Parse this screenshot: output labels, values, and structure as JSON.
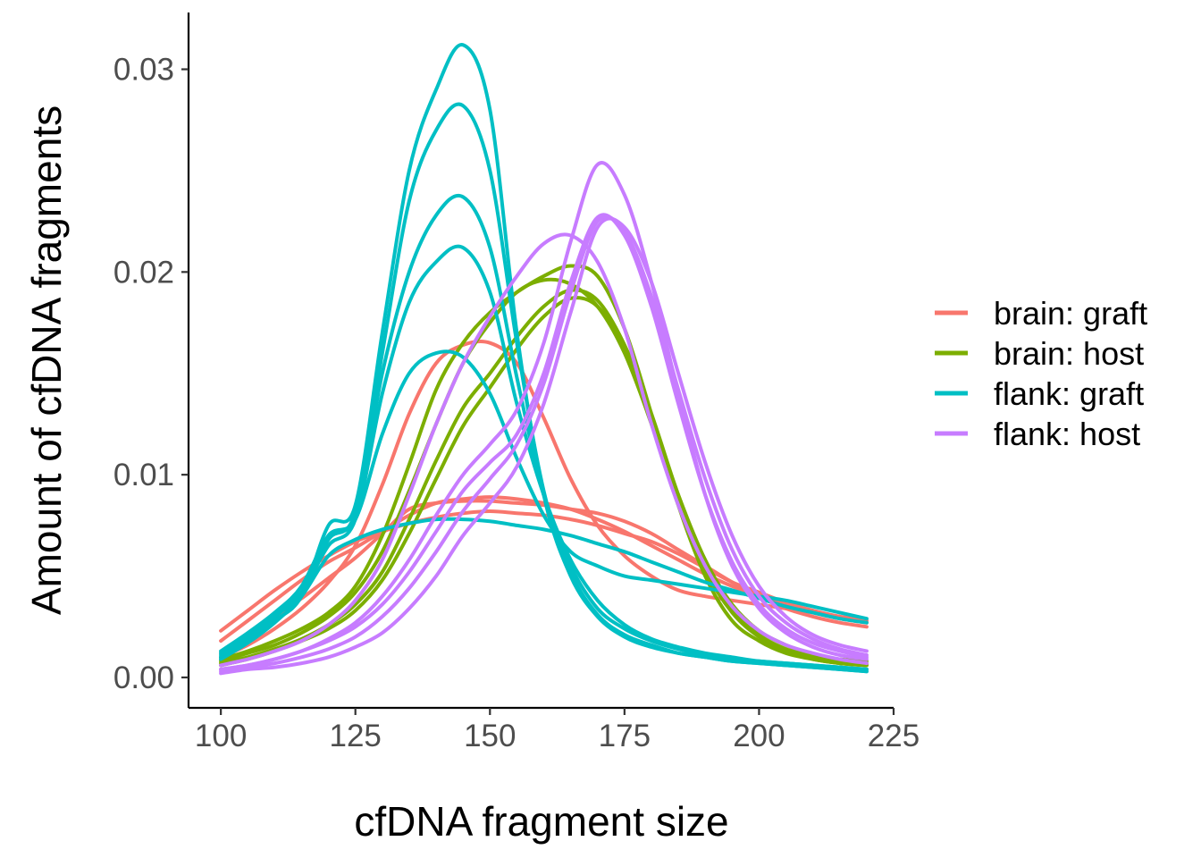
{
  "chart_data": {
    "type": "line",
    "title": "",
    "xlabel": "cfDNA fragment size",
    "ylabel": "Amount of cfDNA fragments",
    "xlim": [
      94,
      225
    ],
    "ylim": [
      -0.0015,
      0.0328
    ],
    "xticks": [
      100,
      125,
      150,
      175,
      200,
      225
    ],
    "yticks": [
      0.0,
      0.01,
      0.02,
      0.03
    ],
    "ytick_labels": [
      "0.00",
      "0.01",
      "0.02",
      "0.03"
    ],
    "grid": false,
    "legend_position": "right",
    "legend": [
      {
        "label": "brain: graft",
        "color": "#F8766D"
      },
      {
        "label": "brain: host",
        "color": "#7CAE00"
      },
      {
        "label": "flank: graft",
        "color": "#00BFC4"
      },
      {
        "label": "flank: host",
        "color": "#C77CFF"
      }
    ],
    "series": [
      {
        "group": "brain: graft",
        "color": "#F8766D",
        "x": [
          100,
          105,
          110,
          115,
          120,
          125,
          130,
          135,
          140,
          145,
          150,
          155,
          160,
          165,
          170,
          175,
          180,
          185,
          190,
          195,
          200,
          205,
          210,
          215,
          220
        ],
        "y": [
          0.0023,
          0.0033,
          0.0043,
          0.0052,
          0.006,
          0.0067,
          0.0072,
          0.0076,
          0.0079,
          0.0081,
          0.0082,
          0.0081,
          0.008,
          0.0078,
          0.0075,
          0.0071,
          0.0067,
          0.0061,
          0.0054,
          0.0047,
          0.0042,
          0.0037,
          0.0033,
          0.003,
          0.0028
        ]
      },
      {
        "group": "brain: graft",
        "color": "#F8766D",
        "x": [
          100,
          105,
          110,
          115,
          120,
          125,
          130,
          135,
          140,
          145,
          150,
          155,
          160,
          165,
          170,
          175,
          180,
          185,
          190,
          195,
          200,
          205,
          210,
          215,
          220
        ],
        "y": [
          0.0018,
          0.0028,
          0.0038,
          0.0048,
          0.0057,
          0.0064,
          0.0072,
          0.008,
          0.0086,
          0.0088,
          0.0089,
          0.0088,
          0.0086,
          0.0083,
          0.0078,
          0.0072,
          0.0065,
          0.0058,
          0.0051,
          0.0045,
          0.004,
          0.0036,
          0.0032,
          0.0029,
          0.0027
        ]
      },
      {
        "group": "brain: graft",
        "color": "#F8766D",
        "x": [
          100,
          105,
          110,
          115,
          120,
          125,
          130,
          135,
          140,
          145,
          150,
          155,
          160,
          165,
          170,
          175,
          180,
          185,
          190,
          195,
          200,
          205,
          210,
          215,
          220
        ],
        "y": [
          0.0012,
          0.0021,
          0.003,
          0.0039,
          0.0049,
          0.0059,
          0.0071,
          0.0083,
          0.0086,
          0.0087,
          0.0087,
          0.0086,
          0.0085,
          0.0083,
          0.0081,
          0.0077,
          0.0071,
          0.0063,
          0.0055,
          0.0047,
          0.004,
          0.0034,
          0.003,
          0.0027,
          0.0025
        ]
      },
      {
        "group": "brain: graft",
        "color": "#F8766D",
        "x": [
          100,
          105,
          110,
          115,
          120,
          125,
          130,
          135,
          140,
          145,
          150,
          155,
          160,
          165,
          170,
          175,
          180,
          185,
          190,
          195,
          200,
          205,
          210,
          215,
          220
        ],
        "y": [
          0.001,
          0.0016,
          0.0024,
          0.0034,
          0.0047,
          0.0065,
          0.0095,
          0.013,
          0.0155,
          0.0164,
          0.0165,
          0.0155,
          0.0128,
          0.0098,
          0.0075,
          0.006,
          0.005,
          0.0043,
          0.004,
          0.0038,
          0.0036,
          0.0034,
          0.0032,
          0.003,
          0.0028
        ]
      },
      {
        "group": "brain: host",
        "color": "#7CAE00",
        "x": [
          100,
          105,
          110,
          115,
          120,
          125,
          130,
          135,
          140,
          145,
          150,
          155,
          160,
          165,
          170,
          175,
          180,
          185,
          190,
          195,
          200,
          205,
          210,
          215,
          220
        ],
        "y": [
          0.0009,
          0.0013,
          0.0018,
          0.0024,
          0.0032,
          0.0045,
          0.007,
          0.0105,
          0.0142,
          0.0165,
          0.018,
          0.019,
          0.0198,
          0.0203,
          0.0198,
          0.0172,
          0.013,
          0.0085,
          0.005,
          0.0028,
          0.0018,
          0.0012,
          0.0009,
          0.0007,
          0.0006
        ]
      },
      {
        "group": "brain: host",
        "color": "#7CAE00",
        "x": [
          100,
          105,
          110,
          115,
          120,
          125,
          130,
          135,
          140,
          145,
          150,
          155,
          160,
          165,
          170,
          175,
          180,
          185,
          190,
          195,
          200,
          205,
          210,
          215,
          220
        ],
        "y": [
          0.0008,
          0.0012,
          0.0016,
          0.0022,
          0.003,
          0.0042,
          0.0062,
          0.0092,
          0.0125,
          0.0155,
          0.0175,
          0.019,
          0.0196,
          0.0194,
          0.0183,
          0.016,
          0.0125,
          0.0085,
          0.0053,
          0.0032,
          0.002,
          0.0013,
          0.0009,
          0.0007,
          0.0006
        ]
      },
      {
        "group": "brain: host",
        "color": "#7CAE00",
        "x": [
          100,
          105,
          110,
          115,
          120,
          125,
          130,
          135,
          140,
          145,
          150,
          155,
          160,
          165,
          170,
          175,
          180,
          185,
          190,
          195,
          200,
          205,
          210,
          215,
          220
        ],
        "y": [
          0.0007,
          0.001,
          0.0014,
          0.0019,
          0.0026,
          0.0036,
          0.0052,
          0.0078,
          0.0107,
          0.0133,
          0.015,
          0.0168,
          0.0183,
          0.0191,
          0.0186,
          0.0164,
          0.013,
          0.009,
          0.0057,
          0.0034,
          0.0021,
          0.0014,
          0.001,
          0.0008,
          0.0007
        ]
      },
      {
        "group": "brain: host",
        "color": "#7CAE00",
        "x": [
          100,
          105,
          110,
          115,
          120,
          125,
          130,
          135,
          140,
          145,
          150,
          155,
          160,
          165,
          170,
          175,
          180,
          185,
          190,
          195,
          200,
          205,
          210,
          215,
          220
        ],
        "y": [
          0.0006,
          0.0009,
          0.0013,
          0.0018,
          0.0024,
          0.0033,
          0.0048,
          0.0071,
          0.0098,
          0.0124,
          0.0143,
          0.0162,
          0.0178,
          0.0187,
          0.0183,
          0.0162,
          0.0128,
          0.009,
          0.0058,
          0.0036,
          0.0023,
          0.0016,
          0.0011,
          0.0009,
          0.0008
        ]
      },
      {
        "group": "flank: graft",
        "color": "#00BFC4",
        "x": [
          100,
          105,
          110,
          115,
          120,
          125,
          130,
          135,
          140,
          145,
          150,
          155,
          160,
          165,
          170,
          175,
          180,
          185,
          190,
          195,
          200,
          205,
          210,
          215,
          220
        ],
        "y": [
          0.001,
          0.0018,
          0.0028,
          0.004,
          0.0075,
          0.0085,
          0.017,
          0.025,
          0.029,
          0.0312,
          0.028,
          0.017,
          0.009,
          0.005,
          0.003,
          0.002,
          0.0015,
          0.0012,
          0.001,
          0.0008,
          0.0007,
          0.0006,
          0.0005,
          0.0004,
          0.0003
        ]
      },
      {
        "group": "flank: graft",
        "color": "#00BFC4",
        "x": [
          100,
          105,
          110,
          115,
          120,
          125,
          130,
          135,
          140,
          145,
          150,
          155,
          160,
          165,
          170,
          175,
          180,
          185,
          190,
          195,
          200,
          205,
          210,
          215,
          220
        ],
        "y": [
          0.0012,
          0.002,
          0.003,
          0.0042,
          0.0068,
          0.0082,
          0.016,
          0.0235,
          0.027,
          0.0282,
          0.025,
          0.0165,
          0.0092,
          0.0052,
          0.0031,
          0.0021,
          0.0016,
          0.0012,
          0.001,
          0.0008,
          0.0007,
          0.0006,
          0.0005,
          0.0004,
          0.0003
        ]
      },
      {
        "group": "flank: graft",
        "color": "#00BFC4",
        "x": [
          100,
          105,
          110,
          115,
          120,
          125,
          130,
          135,
          140,
          145,
          150,
          155,
          160,
          165,
          170,
          175,
          180,
          185,
          190,
          195,
          200,
          205,
          210,
          215,
          220
        ],
        "y": [
          0.0013,
          0.0022,
          0.0032,
          0.0045,
          0.007,
          0.008,
          0.015,
          0.02,
          0.0228,
          0.0237,
          0.0212,
          0.0148,
          0.009,
          0.0055,
          0.0034,
          0.0024,
          0.0018,
          0.0014,
          0.0011,
          0.0009,
          0.0008,
          0.0007,
          0.0006,
          0.0005,
          0.0004
        ]
      },
      {
        "group": "flank: graft",
        "color": "#00BFC4",
        "x": [
          100,
          105,
          110,
          115,
          120,
          125,
          130,
          135,
          140,
          145,
          150,
          155,
          160,
          165,
          170,
          175,
          180,
          185,
          190,
          195,
          200,
          205,
          210,
          215,
          220
        ],
        "y": [
          0.0011,
          0.002,
          0.003,
          0.0042,
          0.0065,
          0.0078,
          0.014,
          0.0185,
          0.0205,
          0.0212,
          0.019,
          0.0135,
          0.009,
          0.0058,
          0.0038,
          0.0026,
          0.0019,
          0.0015,
          0.0012,
          0.001,
          0.0008,
          0.0007,
          0.0006,
          0.0005,
          0.0004
        ]
      },
      {
        "group": "flank: graft",
        "color": "#00BFC4",
        "x": [
          100,
          105,
          110,
          115,
          120,
          125,
          130,
          135,
          140,
          145,
          150,
          155,
          160,
          165,
          170,
          175,
          180,
          185,
          190,
          195,
          200,
          205,
          210,
          215,
          220
        ],
        "y": [
          0.001,
          0.0019,
          0.003,
          0.0045,
          0.007,
          0.0078,
          0.012,
          0.015,
          0.016,
          0.0158,
          0.014,
          0.0108,
          0.008,
          0.0062,
          0.0055,
          0.005,
          0.0048,
          0.0046,
          0.0044,
          0.0042,
          0.004,
          0.0038,
          0.0035,
          0.0032,
          0.0029
        ]
      },
      {
        "group": "flank: graft",
        "color": "#00BFC4",
        "x": [
          100,
          105,
          110,
          115,
          120,
          125,
          130,
          135,
          140,
          145,
          150,
          155,
          160,
          165,
          170,
          175,
          180,
          185,
          190,
          195,
          200,
          205,
          210,
          215,
          220
        ],
        "y": [
          0.0009,
          0.0017,
          0.0027,
          0.004,
          0.006,
          0.0068,
          0.0073,
          0.0076,
          0.0078,
          0.0078,
          0.0077,
          0.0075,
          0.0073,
          0.007,
          0.0066,
          0.0062,
          0.0057,
          0.0052,
          0.0047,
          0.0043,
          0.0039,
          0.0035,
          0.0032,
          0.0029,
          0.0027
        ]
      },
      {
        "group": "flank: host",
        "color": "#C77CFF",
        "x": [
          100,
          105,
          110,
          115,
          120,
          125,
          130,
          135,
          140,
          145,
          150,
          155,
          160,
          165,
          170,
          175,
          180,
          185,
          190,
          195,
          200,
          205,
          210,
          215,
          220
        ],
        "y": [
          0.0006,
          0.0009,
          0.0013,
          0.0018,
          0.0026,
          0.0038,
          0.0058,
          0.009,
          0.0125,
          0.0155,
          0.0178,
          0.0198,
          0.0214,
          0.0218,
          0.0205,
          0.0172,
          0.0125,
          0.0085,
          0.0055,
          0.0035,
          0.0023,
          0.0016,
          0.0012,
          0.0009,
          0.0007
        ]
      },
      {
        "group": "flank: host",
        "color": "#C77CFF",
        "x": [
          100,
          105,
          110,
          115,
          120,
          125,
          130,
          135,
          140,
          145,
          150,
          155,
          160,
          165,
          170,
          175,
          180,
          185,
          190,
          195,
          200,
          205,
          210,
          215,
          220
        ],
        "y": [
          0.0004,
          0.0006,
          0.0009,
          0.0013,
          0.0019,
          0.0027,
          0.004,
          0.0058,
          0.008,
          0.01,
          0.0115,
          0.0132,
          0.0165,
          0.0215,
          0.0253,
          0.0238,
          0.0195,
          0.014,
          0.009,
          0.0055,
          0.0034,
          0.0022,
          0.0015,
          0.0011,
          0.0009
        ]
      },
      {
        "group": "flank: host",
        "color": "#C77CFF",
        "x": [
          100,
          105,
          110,
          115,
          120,
          125,
          130,
          135,
          140,
          145,
          150,
          155,
          160,
          165,
          170,
          175,
          180,
          185,
          190,
          195,
          200,
          205,
          210,
          215,
          220
        ],
        "y": [
          0.0004,
          0.0006,
          0.0009,
          0.0013,
          0.0018,
          0.0025,
          0.0036,
          0.0052,
          0.0072,
          0.0092,
          0.0106,
          0.012,
          0.015,
          0.0195,
          0.0227,
          0.0218,
          0.0183,
          0.0135,
          0.009,
          0.0057,
          0.0036,
          0.0024,
          0.0017,
          0.0013,
          0.001
        ]
      },
      {
        "group": "flank: host",
        "color": "#C77CFF",
        "x": [
          100,
          105,
          110,
          115,
          120,
          125,
          130,
          135,
          140,
          145,
          150,
          155,
          160,
          165,
          170,
          175,
          180,
          185,
          190,
          195,
          200,
          205,
          210,
          215,
          220
        ],
        "y": [
          0.0003,
          0.0005,
          0.0007,
          0.001,
          0.0014,
          0.002,
          0.003,
          0.0044,
          0.0062,
          0.0082,
          0.0098,
          0.0115,
          0.0145,
          0.019,
          0.0225,
          0.022,
          0.0188,
          0.0142,
          0.0098,
          0.0063,
          0.004,
          0.0027,
          0.0019,
          0.0014,
          0.0011
        ]
      },
      {
        "group": "flank: host",
        "color": "#C77CFF",
        "x": [
          100,
          105,
          110,
          115,
          120,
          125,
          130,
          135,
          140,
          145,
          150,
          155,
          160,
          165,
          170,
          175,
          180,
          185,
          190,
          195,
          200,
          205,
          210,
          215,
          220
        ],
        "y": [
          0.0002,
          0.0004,
          0.0005,
          0.0007,
          0.001,
          0.0015,
          0.0022,
          0.0034,
          0.005,
          0.007,
          0.0086,
          0.0104,
          0.0135,
          0.018,
          0.0222,
          0.0222,
          0.0195,
          0.015,
          0.0106,
          0.007,
          0.0045,
          0.003,
          0.0021,
          0.0016,
          0.0013
        ]
      }
    ]
  }
}
